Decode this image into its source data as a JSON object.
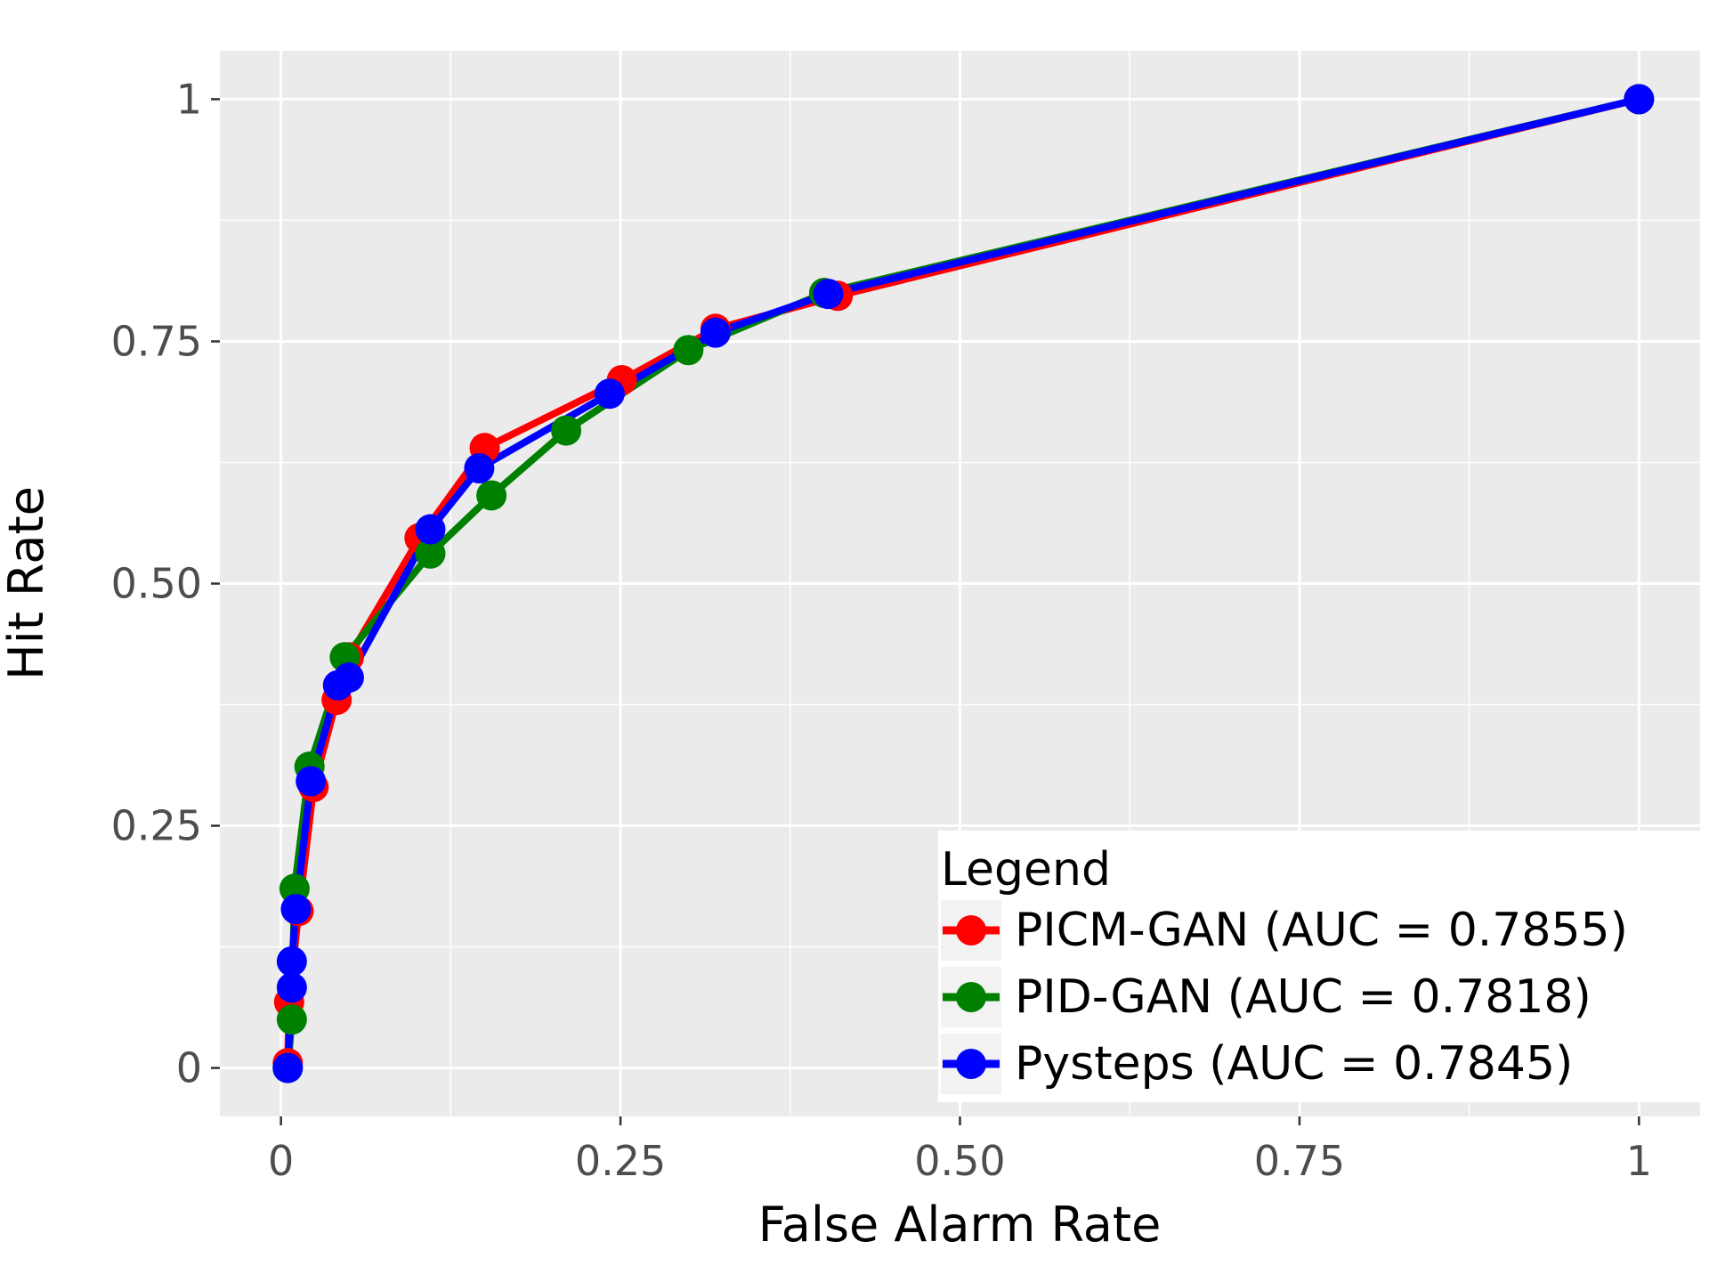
{
  "chart_data": {
    "type": "line",
    "xlabel": "False Alarm Rate",
    "ylabel": "Hit Rate",
    "xlim": [
      -0.045,
      1.045
    ],
    "ylim": [
      -0.05,
      1.05
    ],
    "x_ticks": [
      0,
      0.25,
      0.5,
      0.75,
      1
    ],
    "x_tick_labels": [
      "0",
      "0.25",
      "0.50",
      "0.75",
      "1"
    ],
    "y_ticks": [
      0,
      0.25,
      0.5,
      0.75,
      1
    ],
    "y_tick_labels": [
      "0",
      "0.25",
      "0.50",
      "0.75",
      "1"
    ],
    "grid": true,
    "legend": {
      "title": "Legend",
      "position": "bottom-right"
    },
    "series": [
      {
        "name": "PICM-GAN (AUC = 0.7855)",
        "color": "#ff0000",
        "points": [
          [
            0.005,
            0.005
          ],
          [
            0.006,
            0.068
          ],
          [
            0.013,
            0.162
          ],
          [
            0.024,
            0.29
          ],
          [
            0.041,
            0.38
          ],
          [
            0.05,
            0.424
          ],
          [
            0.102,
            0.547
          ],
          [
            0.15,
            0.64
          ],
          [
            0.251,
            0.71
          ],
          [
            0.32,
            0.763
          ],
          [
            0.41,
            0.797
          ],
          [
            1.0,
            1.0
          ]
        ]
      },
      {
        "name": "PID-GAN (AUC = 0.7818)",
        "color": "#008000",
        "points": [
          [
            0.005,
            0.0
          ],
          [
            0.008,
            0.05
          ],
          [
            0.01,
            0.185
          ],
          [
            0.021,
            0.311
          ],
          [
            0.047,
            0.424
          ],
          [
            0.11,
            0.531
          ],
          [
            0.155,
            0.591
          ],
          [
            0.21,
            0.658
          ],
          [
            0.3,
            0.741
          ],
          [
            0.4,
            0.8
          ],
          [
            1.0,
            1.0
          ]
        ]
      },
      {
        "name": "Pysteps (AUC = 0.7845)",
        "color": "#0000ff",
        "points": [
          [
            0.005,
            0.0
          ],
          [
            0.008,
            0.083
          ],
          [
            0.008,
            0.11
          ],
          [
            0.011,
            0.164
          ],
          [
            0.022,
            0.296
          ],
          [
            0.042,
            0.395
          ],
          [
            0.05,
            0.403
          ],
          [
            0.11,
            0.556
          ],
          [
            0.146,
            0.619
          ],
          [
            0.242,
            0.696
          ],
          [
            0.32,
            0.759
          ],
          [
            0.403,
            0.799
          ],
          [
            1.0,
            1.0
          ]
        ]
      }
    ]
  }
}
